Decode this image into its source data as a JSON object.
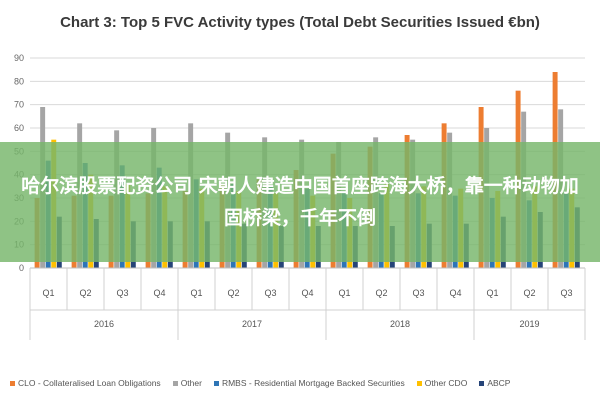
{
  "chart_data": {
    "type": "bar",
    "title": "Chart 3: Top 5 FVC Activity types (Total Debt Securities Issued €bn)",
    "xlabel": "",
    "ylabel": "",
    "ylim": [
      0,
      90
    ],
    "yticks": [
      0,
      10,
      20,
      30,
      40,
      50,
      60,
      70,
      80,
      90
    ],
    "grid": true,
    "legend_position": "bottom",
    "categories": [
      "Q1",
      "Q2",
      "Q3",
      "Q4",
      "Q1",
      "Q2",
      "Q3",
      "Q4",
      "Q1",
      "Q2",
      "Q3",
      "Q4",
      "Q1",
      "Q2",
      "Q3"
    ],
    "groups": [
      {
        "label": "2016",
        "start": 0,
        "end": 3
      },
      {
        "label": "2017",
        "start": 4,
        "end": 7
      },
      {
        "label": "2018",
        "start": 8,
        "end": 11
      },
      {
        "label": "2019",
        "start": 12,
        "end": 14
      }
    ],
    "series": [
      {
        "name": "CLO - Collateralised Loan Obligations",
        "color": "#ed7d31",
        "values": [
          30,
          31,
          31,
          32,
          33,
          36,
          38,
          42,
          49,
          52,
          57,
          62,
          69,
          76,
          84
        ]
      },
      {
        "name": "Other",
        "color": "#a5a5a5",
        "values": [
          69,
          62,
          59,
          60,
          62,
          58,
          56,
          55,
          54,
          56,
          55,
          58,
          60,
          67,
          68
        ]
      },
      {
        "name": "RMBS - Residential Mortgage Backed Securities",
        "color": "#2e75b6",
        "values": [
          46,
          45,
          44,
          43,
          38,
          36,
          35,
          34,
          33,
          32,
          32,
          31,
          30,
          29,
          32
        ]
      },
      {
        "name": "Other CDO",
        "color": "#ffc000",
        "values": [
          55,
          40,
          36,
          35,
          34,
          33,
          32,
          31,
          30,
          36,
          35,
          34,
          33,
          35,
          34
        ]
      },
      {
        "name": "ABCP",
        "color": "#264478",
        "values": [
          22,
          21,
          20,
          20,
          20,
          19,
          18,
          18,
          18,
          18,
          19,
          19,
          22,
          24,
          26
        ]
      }
    ]
  },
  "overlay": {
    "text": "哈尔滨股票配资公司 宋朝人建造中国首座跨海大桥，靠一种动物加固桥梁，千年不倒"
  }
}
